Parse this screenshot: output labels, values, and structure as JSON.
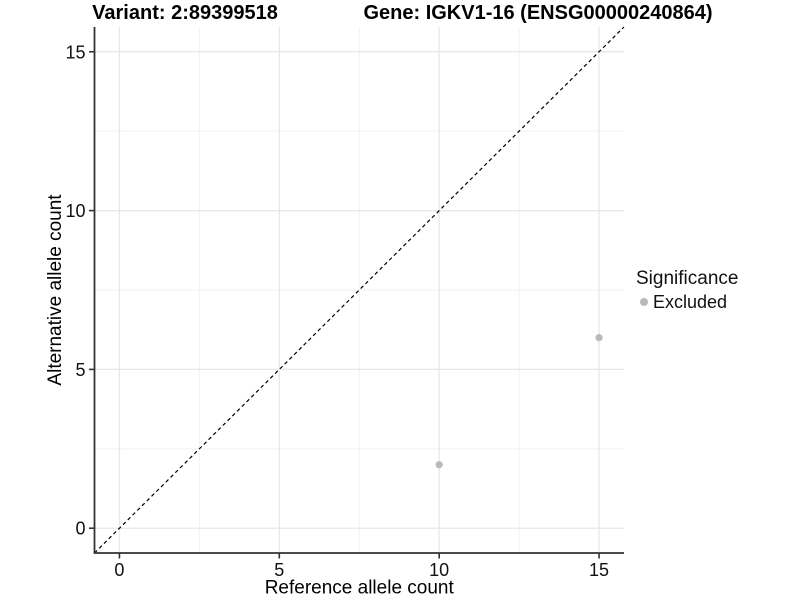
{
  "chart_data": {
    "type": "scatter",
    "titles": {
      "variant": "Variant: 2:89399518",
      "gene": "Gene: IGKV1-16 (ENSG00000240864)"
    },
    "xlabel": "Reference allele count",
    "ylabel": "Alternative allele count",
    "xlim": [
      -0.78,
      15.78
    ],
    "ylim": [
      -0.78,
      15.78
    ],
    "x_ticks": [
      0,
      5,
      10,
      15
    ],
    "y_ticks": [
      0,
      5,
      10,
      15
    ],
    "x_minor_ticks": [
      2.5,
      7.5,
      12.5
    ],
    "y_minor_ticks": [
      2.5,
      7.5,
      12.5
    ],
    "grid": "major+minor",
    "reference_line": {
      "slope": 1,
      "intercept": 0,
      "style": "dashed",
      "color": "#000000"
    },
    "series": [
      {
        "name": "Excluded",
        "color": "#b9b9b9",
        "points": [
          {
            "x": 10,
            "y": 2
          },
          {
            "x": 15,
            "y": 6
          }
        ]
      }
    ],
    "legend": {
      "title": "Significance",
      "position": "right",
      "items": [
        {
          "label": "Excluded",
          "color": "#b9b9b9"
        }
      ]
    }
  },
  "colors": {
    "background": "#ffffff",
    "grid_major": "#e6e6e6",
    "grid_minor": "#f2f2f2",
    "axis": "#333333",
    "tick": "#333333",
    "point": "#b9b9b9"
  }
}
